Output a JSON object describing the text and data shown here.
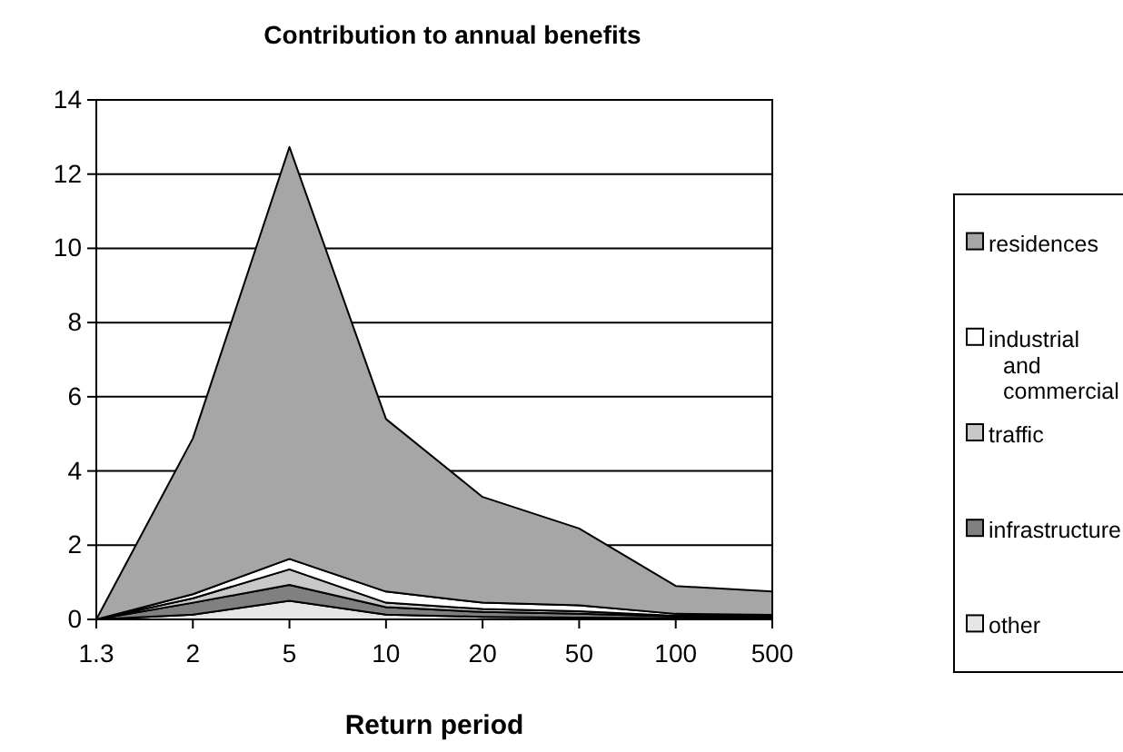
{
  "chart_data": {
    "type": "area",
    "stacked": true,
    "title": "Contribution to annual benefits",
    "xlabel": "Return period",
    "categories": [
      "1.3",
      "2",
      "5",
      "10",
      "20",
      "50",
      "100",
      "500"
    ],
    "series": [
      {
        "name": "other",
        "color": "#e6e6e6",
        "values": [
          0,
          0.13,
          0.5,
          0.13,
          0.07,
          0.05,
          0.03,
          0.03
        ]
      },
      {
        "name": "infrastructure",
        "color": "#808080",
        "values": [
          0,
          0.32,
          0.43,
          0.2,
          0.13,
          0.1,
          0.05,
          0.03
        ]
      },
      {
        "name": "traffic",
        "color": "#c8c8c8",
        "values": [
          0,
          0.12,
          0.42,
          0.12,
          0.08,
          0.07,
          0.02,
          0.02
        ]
      },
      {
        "name": "industrial and commercial",
        "color": "#ffffff",
        "values": [
          0,
          0.11,
          0.28,
          0.3,
          0.17,
          0.16,
          0.05,
          0.04
        ]
      },
      {
        "name": "residences",
        "color": "#a6a6a6",
        "values": [
          0,
          4.2,
          11.1,
          4.65,
          2.85,
          2.07,
          0.75,
          0.63
        ]
      }
    ],
    "ylim": [
      0,
      14
    ],
    "yticks": [
      0,
      2,
      4,
      6,
      8,
      10,
      12,
      14
    ],
    "grid": "y",
    "legend": "right"
  }
}
